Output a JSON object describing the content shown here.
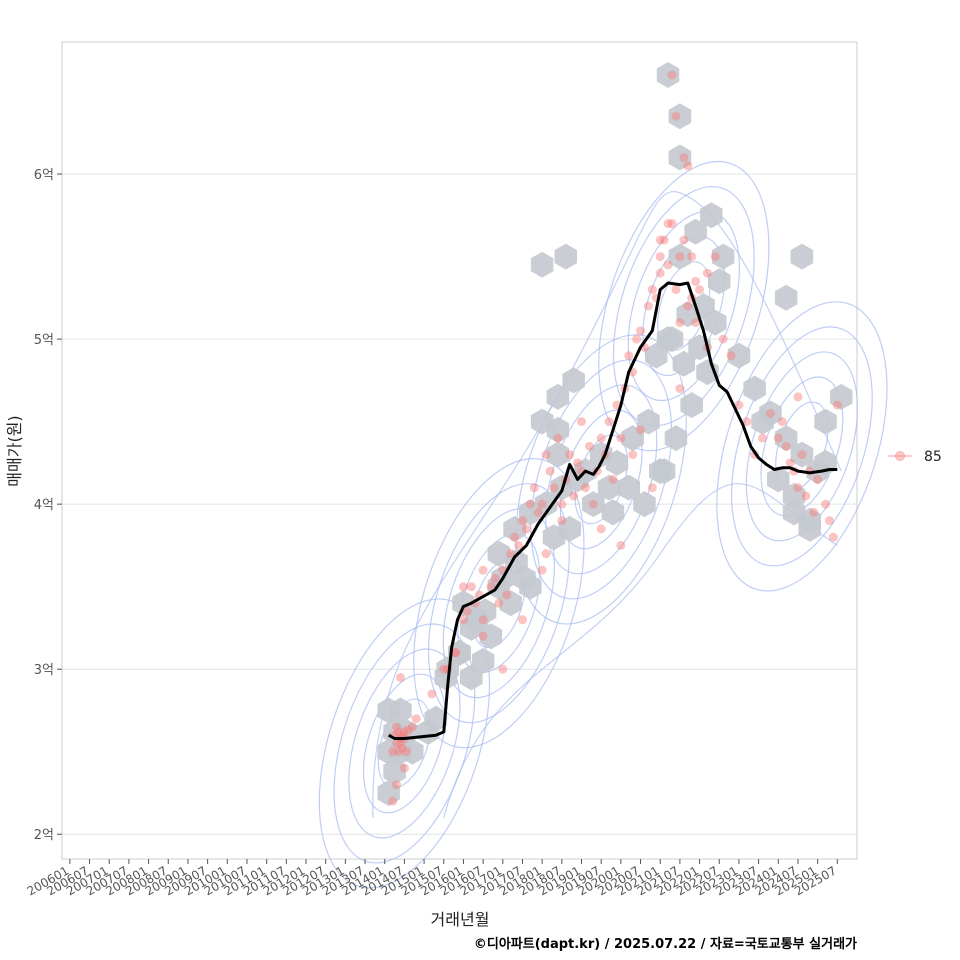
{
  "chart_data": {
    "type": "scatter",
    "xlabel": "거래년월",
    "ylabel": "매매가(원)",
    "caption": "©디아파트(dapt.kr) / 2025.07.22 / 자료=국토교통부 실거래가",
    "legend": {
      "position": "right",
      "entries": [
        {
          "name": "85",
          "color": "#f87a7a"
        }
      ]
    },
    "xlim": [
      2005.8,
      2026.0
    ],
    "ylim": [
      1.85,
      6.8
    ],
    "y_unit": "억",
    "y_ticks": [
      {
        "value": 2,
        "label": "2억"
      },
      {
        "value": 3,
        "label": "3억"
      },
      {
        "value": 4,
        "label": "4억"
      },
      {
        "value": 5,
        "label": "5억"
      },
      {
        "value": 6,
        "label": "6억"
      }
    ],
    "x_ticks": [
      "200601",
      "200607",
      "200701",
      "200707",
      "200801",
      "200807",
      "200901",
      "200907",
      "201001",
      "201007",
      "201101",
      "201107",
      "201201",
      "201207",
      "201301",
      "201307",
      "201401",
      "201407",
      "201501",
      "201507",
      "201601",
      "201607",
      "201701",
      "201707",
      "201801",
      "201807",
      "201901",
      "201907",
      "202001",
      "202007",
      "202101",
      "202107",
      "202201",
      "202207",
      "202301",
      "202307",
      "202401",
      "202407",
      "202501",
      "202507"
    ],
    "grid": true,
    "colors": {
      "points": "#f87a7a",
      "hex": "#c4c9cf",
      "contour": "#aabdf0",
      "trend": "#000000"
    },
    "trend": {
      "x": [
        2014.1,
        2014.25,
        2014.5,
        2014.9,
        2015.3,
        2015.5,
        2015.6,
        2015.7,
        2015.85,
        2016.0,
        2016.2,
        2016.5,
        2016.8,
        2017.0,
        2017.3,
        2017.6,
        2017.9,
        2018.2,
        2018.5,
        2018.7,
        2018.9,
        2019.1,
        2019.3,
        2019.45,
        2019.6,
        2019.8,
        2020.0,
        2020.2,
        2020.5,
        2020.8,
        2021.0,
        2021.2,
        2021.5,
        2021.7,
        2021.9,
        2022.1,
        2022.3,
        2022.5,
        2022.7,
        2022.9,
        2023.1,
        2023.3,
        2023.5,
        2023.7,
        2023.9,
        2024.1,
        2024.3,
        2024.5,
        2024.8,
        2025.1,
        2025.3,
        2025.5
      ],
      "y": [
        2.6,
        2.58,
        2.58,
        2.59,
        2.6,
        2.62,
        2.9,
        3.13,
        3.3,
        3.38,
        3.4,
        3.44,
        3.48,
        3.55,
        3.68,
        3.75,
        3.88,
        3.98,
        4.08,
        4.24,
        4.15,
        4.2,
        4.18,
        4.23,
        4.3,
        4.45,
        4.6,
        4.8,
        4.95,
        5.05,
        5.3,
        5.34,
        5.33,
        5.34,
        5.2,
        5.05,
        4.85,
        4.72,
        4.68,
        4.58,
        4.48,
        4.35,
        4.28,
        4.24,
        4.21,
        4.22,
        4.22,
        4.2,
        4.19,
        4.2,
        4.21,
        4.21
      ]
    },
    "points_x": [
      2014.2,
      2014.25,
      2014.3,
      2014.3,
      2014.35,
      2014.35,
      2014.4,
      2014.4,
      2014.45,
      2014.45,
      2014.5,
      2014.5,
      2014.55,
      2014.6,
      2014.7,
      2014.8,
      2014.3,
      2014.2,
      2014.5,
      2014.4,
      2015.2,
      2015.5,
      2015.8,
      2016.0,
      2016.1,
      2016.2,
      2016.3,
      2016.4,
      2016.5,
      2016.5,
      2016.7,
      2016.8,
      2016.9,
      2017.0,
      2017.1,
      2017.2,
      2017.3,
      2017.4,
      2017.5,
      2017.6,
      2017.7,
      2017.8,
      2017.9,
      2018.0,
      2018.1,
      2018.1,
      2018.2,
      2018.3,
      2018.4,
      2018.5,
      2018.6,
      2018.7,
      2018.8,
      2018.9,
      2019.0,
      2019.1,
      2019.2,
      2019.3,
      2019.4,
      2019.5,
      2019.6,
      2019.7,
      2019.8,
      2019.9,
      2020.0,
      2020.1,
      2020.2,
      2020.3,
      2020.4,
      2020.5,
      2020.6,
      2020.7,
      2020.8,
      2020.9,
      2021.0,
      2021.0,
      2021.1,
      2021.2,
      2021.3,
      2021.4,
      2021.5,
      2021.6,
      2021.7,
      2021.8,
      2021.9,
      2022.0,
      2021.3,
      2021.4,
      2021.6,
      2021.7,
      2021.0,
      2021.2,
      2021.5,
      2022.2,
      2022.4,
      2022.6,
      2022.8,
      2023.0,
      2023.2,
      2023.4,
      2023.6,
      2023.8,
      2024.0,
      2024.1,
      2024.2,
      2024.3,
      2024.4,
      2024.5,
      2024.6,
      2024.7,
      2024.8,
      2025.0,
      2025.2,
      2025.4,
      2025.5,
      2024.5,
      2024.9,
      2025.3,
      2019.0,
      2019.5,
      2020.0,
      2020.3,
      2018.5,
      2018.0,
      2017.5,
      2017.0,
      2016.5,
      2016.0,
      2015.8,
      2015.6,
      2021.8,
      2022.2,
      2021.5,
      2020.5,
      2020.8,
      2021.9
    ],
    "points_y": [
      2.5,
      2.6,
      2.55,
      2.65,
      2.5,
      2.62,
      2.55,
      2.58,
      2.6,
      2.52,
      2.58,
      2.62,
      2.5,
      2.63,
      2.65,
      2.7,
      2.3,
      2.2,
      2.4,
      2.95,
      2.85,
      3.0,
      3.1,
      3.3,
      3.35,
      3.5,
      3.4,
      3.45,
      3.3,
      3.6,
      3.5,
      3.55,
      3.4,
      3.6,
      3.45,
      3.7,
      3.8,
      3.75,
      3.9,
      3.85,
      4.0,
      4.1,
      3.95,
      4.0,
      4.3,
      3.7,
      4.2,
      4.1,
      4.4,
      4.0,
      4.15,
      4.3,
      4.05,
      4.25,
      4.2,
      4.1,
      4.35,
      4.0,
      4.2,
      4.4,
      4.3,
      4.5,
      4.15,
      4.6,
      4.4,
      4.7,
      4.9,
      4.8,
      5.0,
      5.05,
      4.95,
      5.2,
      5.3,
      5.25,
      5.5,
      5.4,
      5.6,
      5.45,
      5.7,
      5.3,
      5.5,
      5.6,
      5.2,
      5.5,
      5.35,
      5.3,
      6.6,
      6.35,
      6.1,
      6.05,
      5.6,
      5.7,
      5.1,
      5.4,
      5.5,
      5.0,
      4.9,
      4.6,
      4.5,
      4.3,
      4.4,
      4.55,
      4.4,
      4.5,
      4.35,
      4.25,
      4.2,
      4.1,
      4.3,
      4.05,
      4.2,
      4.15,
      4.0,
      3.8,
      4.6,
      4.65,
      3.95,
      3.9,
      4.5,
      3.85,
      3.75,
      4.3,
      3.9,
      3.6,
      3.3,
      3.0,
      3.2,
      3.5,
      3.1,
      3.0,
      5.25,
      4.95,
      4.7,
      4.45,
      4.1,
      5.1
    ],
    "hexbins_x": [
      2014.1,
      2014.4,
      2014.7,
      2014.25,
      2014.55,
      2014.1,
      2014.4,
      2014.25,
      2014.1,
      2015.1,
      2015.55,
      2015.9,
      2016.2,
      2016.55,
      2016.9,
      2017.2,
      2017.55,
      2016.0,
      2016.35,
      2016.7,
      2017.0,
      2017.35,
      2017.7,
      2016.5,
      2016.9,
      2017.3,
      2017.7,
      2018.1,
      2018.5,
      2018.9,
      2019.3,
      2019.7,
      2018.3,
      2018.7,
      2019.1,
      2019.5,
      2019.9,
      2020.3,
      2020.7,
      2021.1,
      2019.8,
      2020.2,
      2020.6,
      2021.0,
      2021.4,
      2021.8,
      2022.2,
      2020.9,
      2021.3,
      2021.7,
      2022.1,
      2022.5,
      2021.5,
      2021.9,
      2022.3,
      2021.2,
      2021.6,
      2022.0,
      2022.4,
      2023.0,
      2023.4,
      2023.8,
      2024.2,
      2024.6,
      2025.0,
      2023.6,
      2024.0,
      2024.4,
      2024.8,
      2025.2,
      2025.6,
      2024.4,
      2024.8,
      2025.2,
      2021.2,
      2021.5,
      2021.5,
      2018.0,
      2018.4,
      2018.8,
      2018.6,
      2018.0,
      2018.4,
      2018.4,
      2024.2,
      2024.6,
      2022.6,
      2015.6,
      2015.9,
      2016.2,
      2015.3
    ],
    "hexbins_y": [
      2.5,
      2.5,
      2.5,
      2.62,
      2.62,
      2.75,
      2.75,
      2.38,
      2.25,
      2.62,
      2.95,
      3.1,
      3.25,
      3.35,
      3.5,
      3.4,
      3.55,
      3.4,
      3.3,
      3.2,
      3.55,
      3.65,
      3.5,
      3.05,
      3.7,
      3.85,
      3.95,
      4.0,
      4.1,
      4.15,
      4.0,
      4.1,
      3.8,
      3.85,
      4.2,
      4.3,
      4.25,
      4.4,
      4.5,
      4.2,
      3.95,
      4.1,
      4.0,
      4.2,
      4.4,
      4.6,
      4.8,
      4.9,
      5.0,
      5.15,
      5.2,
      5.35,
      5.5,
      5.65,
      5.75,
      5.0,
      4.85,
      4.95,
      5.1,
      4.9,
      4.7,
      4.55,
      4.4,
      4.3,
      4.2,
      4.5,
      4.15,
      4.05,
      3.9,
      4.25,
      4.65,
      3.95,
      3.85,
      4.5,
      6.6,
      6.35,
      6.1,
      4.5,
      4.65,
      4.75,
      5.5,
      5.45,
      4.3,
      4.45,
      5.25,
      5.5,
      5.5,
      3.0,
      3.1,
      2.95,
      2.7
    ],
    "density_center": {
      "x_values": [
        2014.5,
        2016.9,
        2019.5,
        2021.6,
        2024.6
      ],
      "y_values": [
        2.55,
        3.4,
        4.15,
        5.2,
        4.35
      ]
    }
  }
}
